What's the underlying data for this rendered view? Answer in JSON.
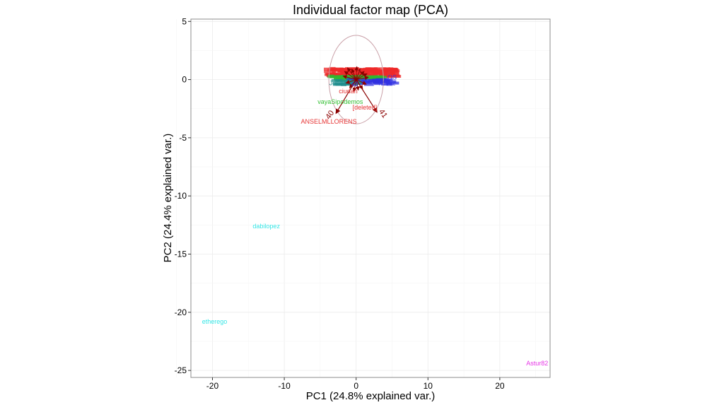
{
  "chart_data": {
    "type": "scatter",
    "title": "Individual factor map (PCA)",
    "xlabel": "PC1 (24.8% explained var.)",
    "ylabel": "PC2 (24.4% explained var.)",
    "xlim": [
      -23,
      27
    ],
    "ylim": [
      -25.6,
      5.2
    ],
    "xticks": [
      -20,
      -10,
      0,
      10,
      20
    ],
    "yticks": [
      5,
      0,
      -5,
      -10,
      -15,
      -20,
      -25
    ],
    "grid": true,
    "legend": "none",
    "circle": {
      "cx": 0,
      "cy": 0,
      "r": 3.8
    },
    "arrows": [
      {
        "label": "40",
        "x": -2.8,
        "y": -2.9
      },
      {
        "label": "41",
        "x": 2.9,
        "y": -2.8
      }
    ],
    "points": [
      {
        "label": "dabilopez",
        "x": -12.5,
        "y": -12.6,
        "color": "#35e6e6"
      },
      {
        "label": "etherego",
        "x": -19.7,
        "y": -20.8,
        "color": "#35e6e6"
      },
      {
        "label": "Astur82",
        "x": 25.2,
        "y": -24.4,
        "color": "#e635e6"
      },
      {
        "label": "ANSELMLLORENS",
        "x": -3.8,
        "y": -3.6,
        "color": "#e63535"
      },
      {
        "label": "vayaSipodemos",
        "x": -2.2,
        "y": -1.9,
        "color": "#35c035"
      },
      {
        "label": "[deleted]",
        "x": 1.2,
        "y": -2.4,
        "color": "#e63535"
      },
      {
        "label": "ciudan",
        "x": -1.1,
        "y": -1.0,
        "color": "#e63535"
      },
      {
        "label": "Jose",
        "x": -2.8,
        "y": -0.3,
        "color": "#1f8e8e"
      },
      {
        "label": "nchez",
        "x": 4.3,
        "y": -0.3,
        "color": "#3535e6"
      },
      {
        "label": "OS",
        "x": 5.0,
        "y": 0.2,
        "color": "#3535e6"
      },
      {
        "label": "s2",
        "x": -0.2,
        "y": -0.4,
        "color": "#3535e6"
      },
      {
        "label": "LP",
        "x": 0.2,
        "y": 0.75,
        "color": "#e63535"
      },
      {
        "label": "A",
        "x": 4.6,
        "y": 0.5,
        "color": "#e63535"
      }
    ]
  }
}
